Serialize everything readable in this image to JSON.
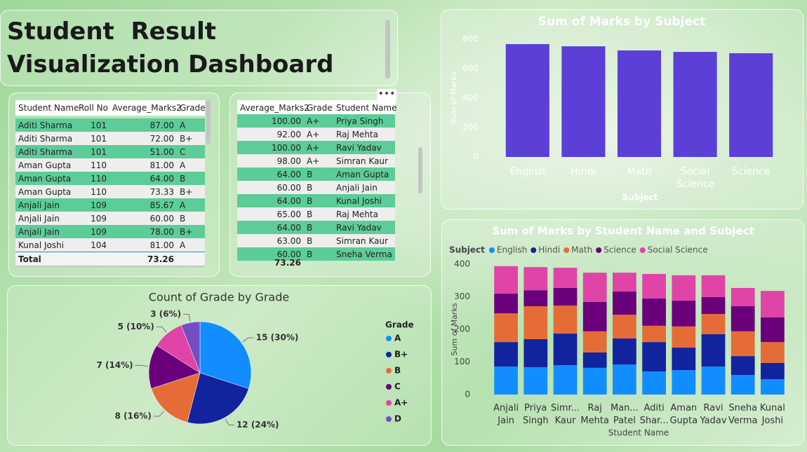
{
  "title": [
    "Student  Result",
    "Visualization Dashboard"
  ],
  "tables": [
    {
      "columns": [
        "Student Name",
        "Roll No",
        "Average_Marks2",
        "Grade"
      ],
      "rows": [
        [
          "Aditi Sharma",
          "101",
          "87.00",
          "A"
        ],
        [
          "Aditi Sharma",
          "101",
          "72.00",
          "B+"
        ],
        [
          "Aditi Sharma",
          "101",
          "51.00",
          "C"
        ],
        [
          "Aman Gupta",
          "110",
          "81.00",
          "A"
        ],
        [
          "Aman Gupta",
          "110",
          "64.00",
          "B"
        ],
        [
          "Aman Gupta",
          "110",
          "73.33",
          "B+"
        ],
        [
          "Anjali Jain",
          "109",
          "85.67",
          "A"
        ],
        [
          "Anjali Jain",
          "109",
          "60.00",
          "B"
        ],
        [
          "Anjali Jain",
          "109",
          "78.00",
          "B+"
        ],
        [
          "Kunal Joshi",
          "104",
          "81.00",
          "A"
        ]
      ],
      "total_label": "Total",
      "total": "73.26"
    },
    {
      "columns": [
        "Average_Marks2",
        "Grade",
        "Student Name"
      ],
      "rows": [
        [
          "100.00",
          "A+",
          "Priya Singh"
        ],
        [
          "92.00",
          "A+",
          "Raj Mehta"
        ],
        [
          "100.00",
          "A+",
          "Ravi Yadav"
        ],
        [
          "98.00",
          "A+",
          "Simran Kaur"
        ],
        [
          "64.00",
          "B",
          "Aman Gupta"
        ],
        [
          "60.00",
          "B",
          "Anjali Jain"
        ],
        [
          "64.00",
          "B",
          "Kunal Joshi"
        ],
        [
          "65.00",
          "B",
          "Raj Mehta"
        ],
        [
          "64.00",
          "B",
          "Ravi Yadav"
        ],
        [
          "63.00",
          "B",
          "Simran Kaur"
        ],
        [
          "60.00",
          "B",
          "Sneha Verma"
        ]
      ],
      "total": "73.26"
    }
  ],
  "chart_data": [
    {
      "type": "bar",
      "title": "Sum of Marks by Subject",
      "x_label": "Subject",
      "y_label": "Sum of Marks",
      "categories": [
        "English",
        "Hindi",
        "Math",
        "Social Science",
        "Science"
      ],
      "values": [
        767,
        752,
        724,
        714,
        705
      ],
      "color": "#5c3fd6",
      "ylim": [
        0,
        800
      ],
      "yticks": [
        0,
        200,
        400,
        600,
        800
      ]
    },
    {
      "type": "pie",
      "title": "Count of Grade by Grade",
      "legend_title": "Grade",
      "categories": [
        "A",
        "B+",
        "B",
        "C",
        "A+",
        "D"
      ],
      "values": [
        15,
        12,
        8,
        7,
        5,
        3
      ],
      "value_labels": [
        "15 (30%)",
        "12 (24%)",
        "8 (16%)",
        "7 (14%)",
        "5 (10%)",
        "3 (6%)"
      ],
      "colors": [
        "#118dff",
        "#12239e",
        "#e66c37",
        "#6b007b",
        "#e044a7",
        "#744ec2"
      ]
    },
    {
      "type": "stacked_bar",
      "title": "Sum of Marks by Student Name and Subject",
      "legend_title": "Subject",
      "x_label": "Student Name",
      "y_label": "Sum of Marks",
      "categories": [
        "Anjali Jain",
        "Priya Singh",
        "Simr... Kaur",
        "Raj Mehta",
        "Man... Patel",
        "Aditi Shar...",
        "Aman Gupta",
        "Ravi Yadav",
        "Sneha Verma",
        "Kunal Joshi"
      ],
      "series": [
        {
          "name": "English",
          "color": "#118dff",
          "values": [
            86,
            84,
            90,
            82,
            92,
            71,
            75,
            86,
            60,
            47
          ]
        },
        {
          "name": "Hindi",
          "color": "#12239e",
          "values": [
            75,
            86,
            97,
            47,
            80,
            90,
            69,
            99,
            58,
            50
          ]
        },
        {
          "name": "Math",
          "color": "#e66c37",
          "values": [
            88,
            101,
            86,
            65,
            73,
            50,
            65,
            62,
            76,
            64
          ]
        },
        {
          "name": "Science",
          "color": "#6b007b",
          "values": [
            61,
            49,
            54,
            90,
            71,
            84,
            79,
            52,
            77,
            76
          ]
        },
        {
          "name": "Social Science",
          "color": "#e044a7",
          "values": [
            84,
            71,
            62,
            90,
            58,
            75,
            78,
            67,
            56,
            81
          ]
        }
      ],
      "ylim": [
        0,
        400
      ],
      "yticks": [
        0,
        100,
        200,
        300,
        400
      ]
    }
  ]
}
